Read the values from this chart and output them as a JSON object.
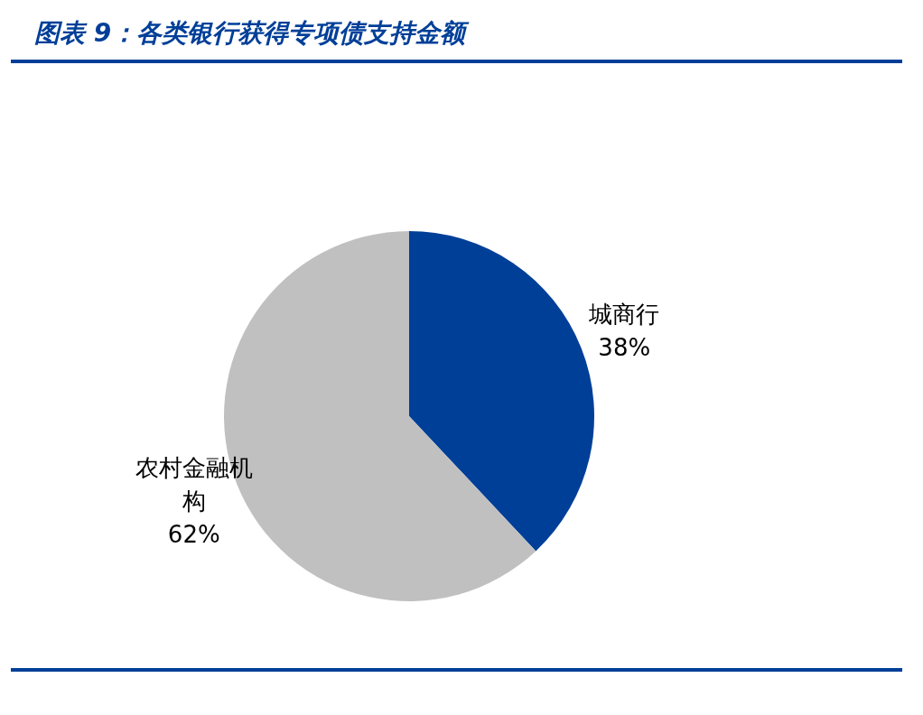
{
  "chart_data": {
    "type": "pie",
    "title": "图表 9：各类银行获得专项债支持金额",
    "categories": [
      "城商行",
      "农村金融机构"
    ],
    "values": [
      38,
      62
    ],
    "colors": [
      "#003f98",
      "#c0c0c0"
    ],
    "value_labels": [
      "38%",
      "62%"
    ]
  }
}
